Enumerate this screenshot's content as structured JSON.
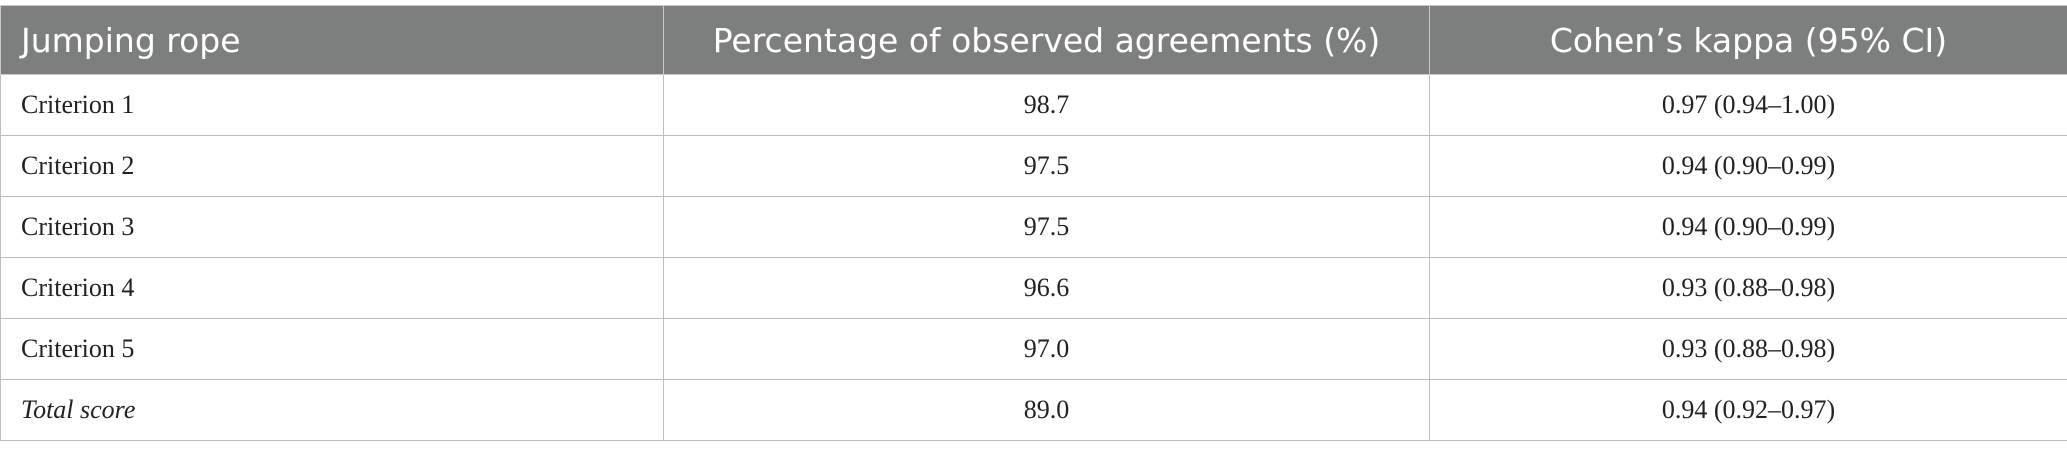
{
  "table": {
    "header": [
      "Jumping rope",
      "Percentage of observed agreements (%)",
      "Cohen’s kappa (95% CI)"
    ],
    "rows": [
      [
        "Criterion 1",
        "98.7",
        "0.97 (0.94–1.00)"
      ],
      [
        "Criterion 2",
        "97.5",
        "0.94 (0.90–0.99)"
      ],
      [
        "Criterion 3",
        "97.5",
        "0.94 (0.90–0.99)"
      ],
      [
        "Criterion 4",
        "96.6",
        "0.93 (0.88–0.98)"
      ],
      [
        "Criterion 5",
        "97.0",
        "0.93 (0.88–0.98)"
      ],
      [
        "Total score",
        "89.0",
        "0.94 (0.92–0.97)"
      ]
    ]
  }
}
